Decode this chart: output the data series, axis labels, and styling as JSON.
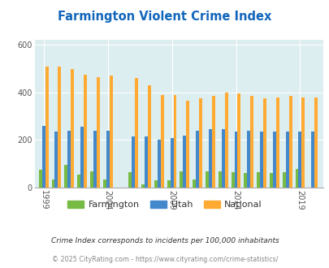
{
  "title": "Farmington Violent Crime Index",
  "years": [
    1999,
    2000,
    2001,
    2002,
    2003,
    2004,
    2006,
    2007,
    2008,
    2009,
    2010,
    2011,
    2012,
    2013,
    2014,
    2015,
    2016,
    2017,
    2018,
    2019,
    2020
  ],
  "farmington": [
    75,
    35,
    95,
    55,
    70,
    35,
    65,
    15,
    30,
    30,
    70,
    35,
    70,
    70,
    65,
    60,
    65,
    60,
    65,
    80,
    0
  ],
  "utah": [
    260,
    235,
    240,
    255,
    240,
    240,
    215,
    215,
    200,
    210,
    220,
    240,
    245,
    245,
    235,
    240,
    235,
    235,
    235,
    235,
    235
  ],
  "national": [
    510,
    510,
    500,
    475,
    465,
    470,
    460,
    430,
    390,
    390,
    365,
    375,
    385,
    400,
    395,
    385,
    375,
    380,
    385,
    380,
    380
  ],
  "farmington_color": "#77bb44",
  "utah_color": "#4488cc",
  "national_color": "#ffaa33",
  "plot_bg": "#ddeef0",
  "ylim": [
    0,
    620
  ],
  "yticks": [
    0,
    200,
    400,
    600
  ],
  "xtick_positions": [
    1999,
    2004,
    2009,
    2014,
    2019
  ],
  "xtick_labels": [
    "1999",
    "2004",
    "2009",
    "2014",
    "2019"
  ],
  "footer1": "Crime Index corresponds to incidents per 100,000 inhabitants",
  "footer2": "© 2025 CityRating.com - https://www.cityrating.com/crime-statistics/"
}
